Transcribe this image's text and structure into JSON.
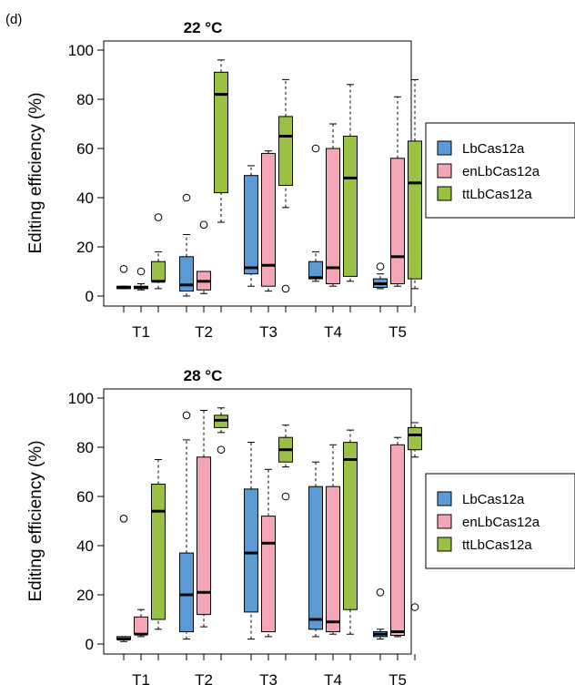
{
  "panel_label": "(d)",
  "colors": {
    "LbCas12a": "#5b9bd5",
    "enLbCas12a": "#f4a6b7",
    "ttLbCas12a": "#9bc144"
  },
  "chart_data": [
    {
      "type": "box",
      "title": "22 °C",
      "ylabel": "Editing efficiency (%)",
      "xlabel": "",
      "ylim": [
        0,
        100
      ],
      "yticks": [
        0,
        20,
        40,
        60,
        80,
        100
      ],
      "categories": [
        "T1",
        "T2",
        "T3",
        "T4",
        "T5"
      ],
      "legend": {
        "position": "right",
        "entries": [
          "LbCas12a",
          "enLbCas12a",
          "ttLbCas12a"
        ]
      },
      "series": [
        {
          "name": "LbCas12a",
          "boxes": [
            {
              "min": 3,
              "q1": 3,
              "median": 3.5,
              "q3": 4,
              "max": 4,
              "outliers": [
                11
              ]
            },
            {
              "min": 0,
              "q1": 2,
              "median": 4.5,
              "q3": 16,
              "max": 25,
              "outliers": [
                40
              ]
            },
            {
              "min": 4,
              "q1": 9,
              "median": 11.5,
              "q3": 49,
              "max": 53,
              "outliers": []
            },
            {
              "min": 6,
              "q1": 7,
              "median": 7.5,
              "q3": 14,
              "max": 18,
              "outliers": [
                60
              ]
            },
            {
              "min": 3,
              "q1": 3.5,
              "median": 5,
              "q3": 7,
              "max": 9,
              "outliers": [
                12
              ]
            }
          ]
        },
        {
          "name": "enLbCas12a",
          "boxes": [
            {
              "min": 2.5,
              "q1": 3,
              "median": 3.5,
              "q3": 4,
              "max": 5,
              "outliers": [
                10
              ]
            },
            {
              "min": 1,
              "q1": 2.5,
              "median": 6,
              "q3": 10,
              "max": 10,
              "outliers": [
                29
              ]
            },
            {
              "min": 2,
              "q1": 4,
              "median": 12.5,
              "q3": 58,
              "max": 59,
              "outliers": []
            },
            {
              "min": 4,
              "q1": 5,
              "median": 11.5,
              "q3": 60,
              "max": 70,
              "outliers": []
            },
            {
              "min": 4,
              "q1": 5,
              "median": 16,
              "q3": 56,
              "max": 81,
              "outliers": []
            }
          ]
        },
        {
          "name": "ttLbCas12a",
          "boxes": [
            {
              "min": 3,
              "q1": 6,
              "median": 6,
              "q3": 14,
              "max": 18,
              "outliers": [
                32
              ]
            },
            {
              "min": 30,
              "q1": 42,
              "median": 82,
              "q3": 91,
              "max": 96,
              "outliers": []
            },
            {
              "min": 36,
              "q1": 45,
              "median": 65,
              "q3": 73,
              "max": 88,
              "outliers": [
                3
              ]
            },
            {
              "min": 6,
              "q1": 8,
              "median": 48,
              "q3": 65,
              "max": 86,
              "outliers": []
            },
            {
              "min": 3,
              "q1": 7,
              "median": 46,
              "q3": 63,
              "max": 88,
              "outliers": []
            }
          ]
        }
      ]
    },
    {
      "type": "box",
      "title": "28 °C",
      "ylabel": "Editing efficiency (%)",
      "xlabel": "",
      "ylim": [
        0,
        100
      ],
      "yticks": [
        0,
        20,
        40,
        60,
        80,
        100
      ],
      "categories": [
        "T1",
        "T2",
        "T3",
        "T4",
        "T5"
      ],
      "legend": {
        "position": "right",
        "entries": [
          "LbCas12a",
          "enLbCas12a",
          "ttLbCas12a"
        ]
      },
      "series": [
        {
          "name": "LbCas12a",
          "boxes": [
            {
              "min": 1,
              "q1": 2,
              "median": 2,
              "q3": 3,
              "max": 3,
              "outliers": [
                51
              ]
            },
            {
              "min": 2,
              "q1": 5,
              "median": 20,
              "q3": 37,
              "max": 83,
              "outliers": [
                93
              ]
            },
            {
              "min": 2,
              "q1": 13,
              "median": 37,
              "q3": 63,
              "max": 82,
              "outliers": []
            },
            {
              "min": 3,
              "q1": 6,
              "median": 10,
              "q3": 64,
              "max": 74,
              "outliers": []
            },
            {
              "min": 2,
              "q1": 3,
              "median": 4,
              "q3": 5,
              "max": 6,
              "outliers": [
                21
              ]
            }
          ]
        },
        {
          "name": "enLbCas12a",
          "boxes": [
            {
              "min": 3,
              "q1": 4,
              "median": 4,
              "q3": 11,
              "max": 14,
              "outliers": []
            },
            {
              "min": 7,
              "q1": 12,
              "median": 21,
              "q3": 76,
              "max": 95,
              "outliers": []
            },
            {
              "min": 3,
              "q1": 5,
              "median": 41,
              "q3": 52,
              "max": 71,
              "outliers": []
            },
            {
              "min": 4,
              "q1": 5,
              "median": 9,
              "q3": 64,
              "max": 81,
              "outliers": []
            },
            {
              "min": 3,
              "q1": 3.5,
              "median": 5,
              "q3": 81,
              "max": 84,
              "outliers": []
            }
          ]
        },
        {
          "name": "ttLbCas12a",
          "boxes": [
            {
              "min": 6,
              "q1": 10,
              "median": 54,
              "q3": 65,
              "max": 75,
              "outliers": []
            },
            {
              "min": 86,
              "q1": 88,
              "median": 91,
              "q3": 93,
              "max": 96,
              "outliers": [
                79
              ]
            },
            {
              "min": 72,
              "q1": 74,
              "median": 79,
              "q3": 84,
              "max": 89,
              "outliers": [
                60
              ]
            },
            {
              "min": 4,
              "q1": 14,
              "median": 75,
              "q3": 82,
              "max": 87,
              "outliers": []
            },
            {
              "min": 76,
              "q1": 79,
              "median": 85,
              "q3": 88,
              "max": 90,
              "outliers": [
                15
              ]
            }
          ]
        }
      ]
    }
  ]
}
